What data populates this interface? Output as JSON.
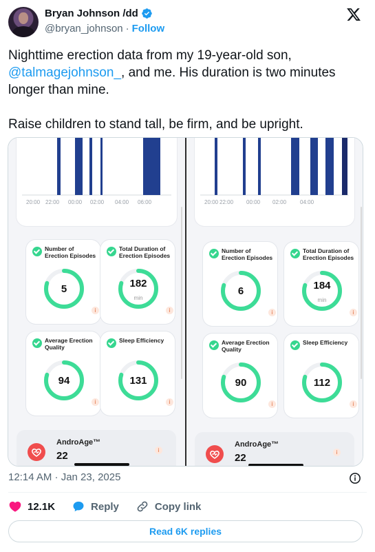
{
  "author": {
    "name": "Bryan Johnson /dd",
    "handle": "@bryan_johnson",
    "separator": "·",
    "follow_label": "Follow",
    "verified_icon": "verified-badge-icon"
  },
  "tweet": {
    "line1_prefix": "Nighttime erection data from my 19-year-old son,",
    "mention": "@talmagejohnson_",
    "line1_suffix": ", and me. His duration is two minutes longer than mine.",
    "line2": "Raise children to stand tall, be firm, and be upright."
  },
  "media": {
    "left": {
      "chart_data": {
        "type": "bar",
        "x_ticks": [
          "20:00",
          "22:00",
          "00:00",
          "02:00",
          "04:00",
          "06:00"
        ],
        "bar_color": "#213f8f"
      },
      "metrics": [
        {
          "label": "Number of Erection Episodes",
          "value": "5",
          "unit": "",
          "progress": 0.8
        },
        {
          "label": "Total Duration of Erection Episodes",
          "value": "182",
          "unit": "min",
          "progress": 0.8
        },
        {
          "label": "Average Erection Quality",
          "value": "94",
          "unit": "",
          "progress": 0.8
        },
        {
          "label": "Sleep Efficiency",
          "value": "131",
          "unit": "",
          "progress": 0.8
        }
      ],
      "andro": {
        "label": "AndroAge™",
        "value": "22"
      }
    },
    "right": {
      "chart_data": {
        "type": "bar",
        "x_ticks": [
          "20:00",
          "22:00",
          "00:00",
          "02:00",
          "04:00"
        ],
        "bar_color": "#213f8f"
      },
      "metrics": [
        {
          "label": "Number of Erection Episodes",
          "value": "6",
          "unit": "",
          "progress": 0.8
        },
        {
          "label": "Total Duration of Erection Episodes",
          "value": "184",
          "unit": "min",
          "progress": 0.8
        },
        {
          "label": "Average Erection Quality",
          "value": "90",
          "unit": "",
          "progress": 0.8
        },
        {
          "label": "Sleep Efficiency",
          "value": "112",
          "unit": "",
          "progress": 0.8
        }
      ],
      "andro": {
        "label": "AndroAge™",
        "value": "22"
      }
    },
    "info_glyph": "i",
    "ring_color": "#3ddc97"
  },
  "footer": {
    "timestamp": "12:14 AM · Jan 23, 2025",
    "likes": "12.1K",
    "reply_label": "Reply",
    "copy_link_label": "Copy link",
    "read_replies_label": "Read 6K replies"
  },
  "colors": {
    "accent": "#1d9bf0",
    "like": "#f91880",
    "text": "#0f1419",
    "muted": "#536471"
  }
}
